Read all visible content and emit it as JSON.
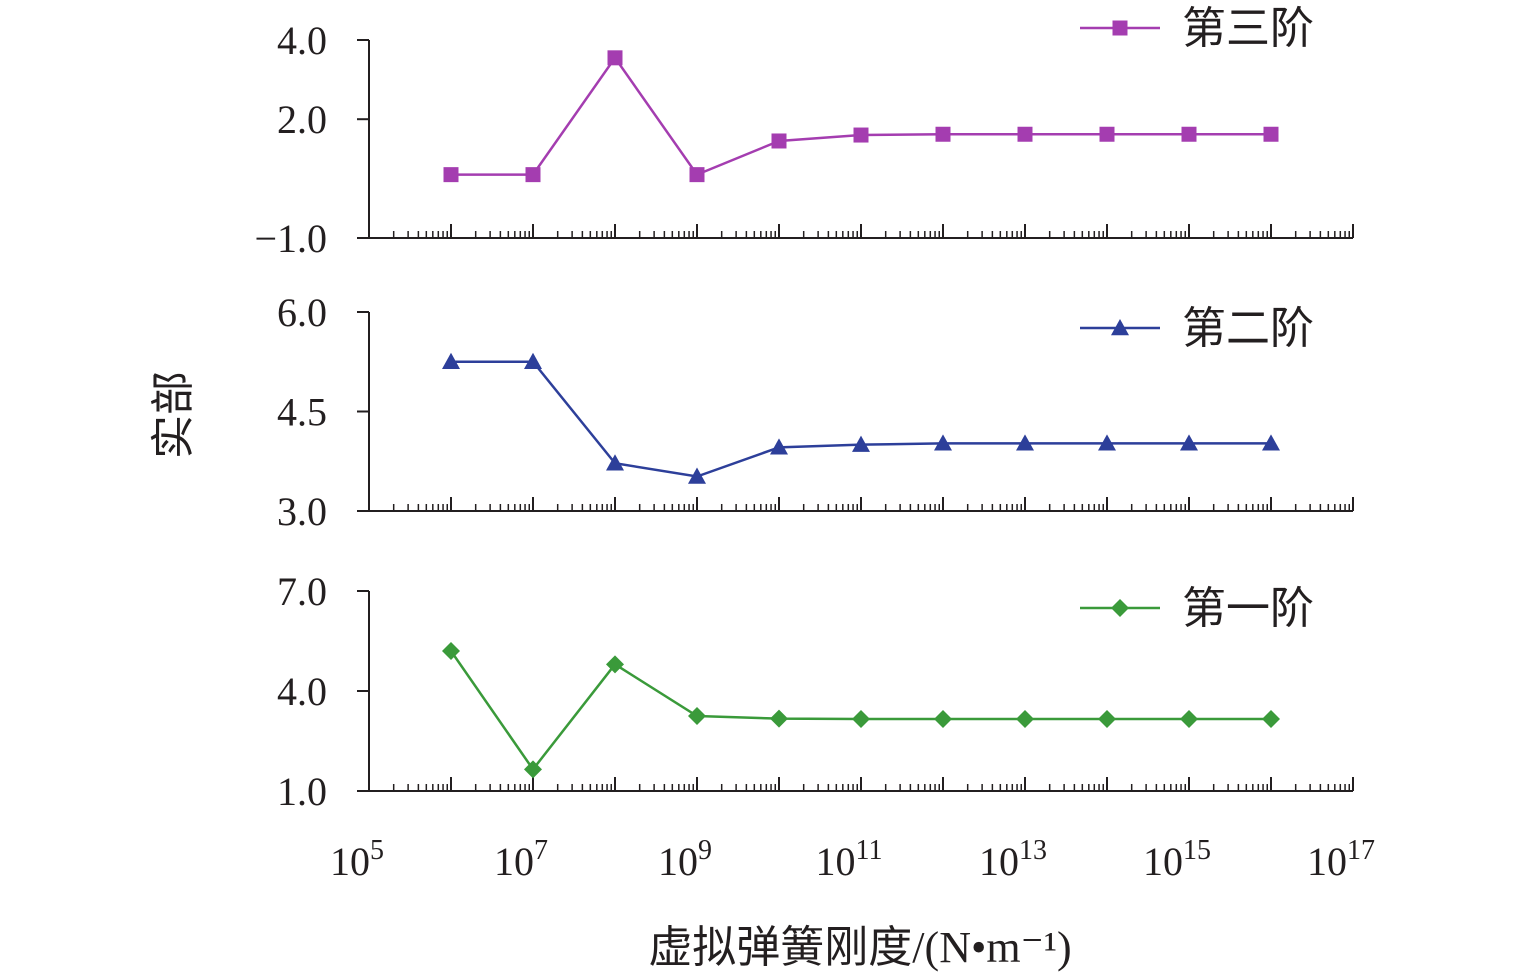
{
  "chart_data": {
    "type": "line",
    "xlabel": "虚拟弹簧刚度/(N•m⁻¹)",
    "ylabel": "实部",
    "x_scale": "log",
    "x_tick_labels": [
      {
        "base": "10",
        "exp": "5"
      },
      {
        "base": "10",
        "exp": "7"
      },
      {
        "base": "10",
        "exp": "9"
      },
      {
        "base": "10",
        "exp": "11"
      },
      {
        "base": "10",
        "exp": "13"
      },
      {
        "base": "10",
        "exp": "15"
      },
      {
        "base": "10",
        "exp": "17"
      }
    ],
    "xlim": [
      100000.0,
      1e+17
    ],
    "x": [
      1000000.0,
      10000000.0,
      100000000.0,
      1000000000.0,
      10000000000.0,
      100000000000.0,
      1000000000000.0,
      10000000000000.0,
      100000000000000.0,
      1000000000000000.0,
      1e+16
    ],
    "grid": false,
    "legend_position": "top-right of each panel",
    "panels": [
      {
        "ylim": [
          -1.0,
          4.0
        ],
        "y_tick_values": [
          -1.0,
          2.0,
          4.0
        ],
        "y_tick_labels": [
          "−1.0",
          "2.0",
          "4.0"
        ],
        "series": [
          {
            "name": "第三阶",
            "color": "#a43db0",
            "marker": "square",
            "values": [
              0.6,
              0.6,
              3.55,
              0.6,
              1.45,
              1.6,
              1.62,
              1.62,
              1.62,
              1.62,
              1.62
            ]
          }
        ]
      },
      {
        "ylim": [
          3.0,
          6.0
        ],
        "y_tick_values": [
          3.0,
          4.5,
          6.0
        ],
        "y_tick_labels": [
          "3.0",
          "4.5",
          "6.0"
        ],
        "series": [
          {
            "name": "第二阶",
            "color": "#2d3f9a",
            "marker": "triangle",
            "values": [
              5.25,
              5.25,
              3.72,
              3.52,
              3.96,
              4.0,
              4.02,
              4.02,
              4.02,
              4.02,
              4.02
            ]
          }
        ]
      },
      {
        "ylim": [
          1.0,
          7.0
        ],
        "y_tick_values": [
          1.0,
          4.0,
          7.0
        ],
        "y_tick_labels": [
          "1.0",
          "4.0",
          "7.0"
        ],
        "series": [
          {
            "name": "第一阶",
            "color": "#3a9a3a",
            "marker": "diamond",
            "values": [
              5.2,
              1.65,
              4.8,
              3.25,
              3.17,
              3.16,
              3.16,
              3.16,
              3.16,
              3.16,
              3.16
            ]
          }
        ]
      }
    ]
  }
}
